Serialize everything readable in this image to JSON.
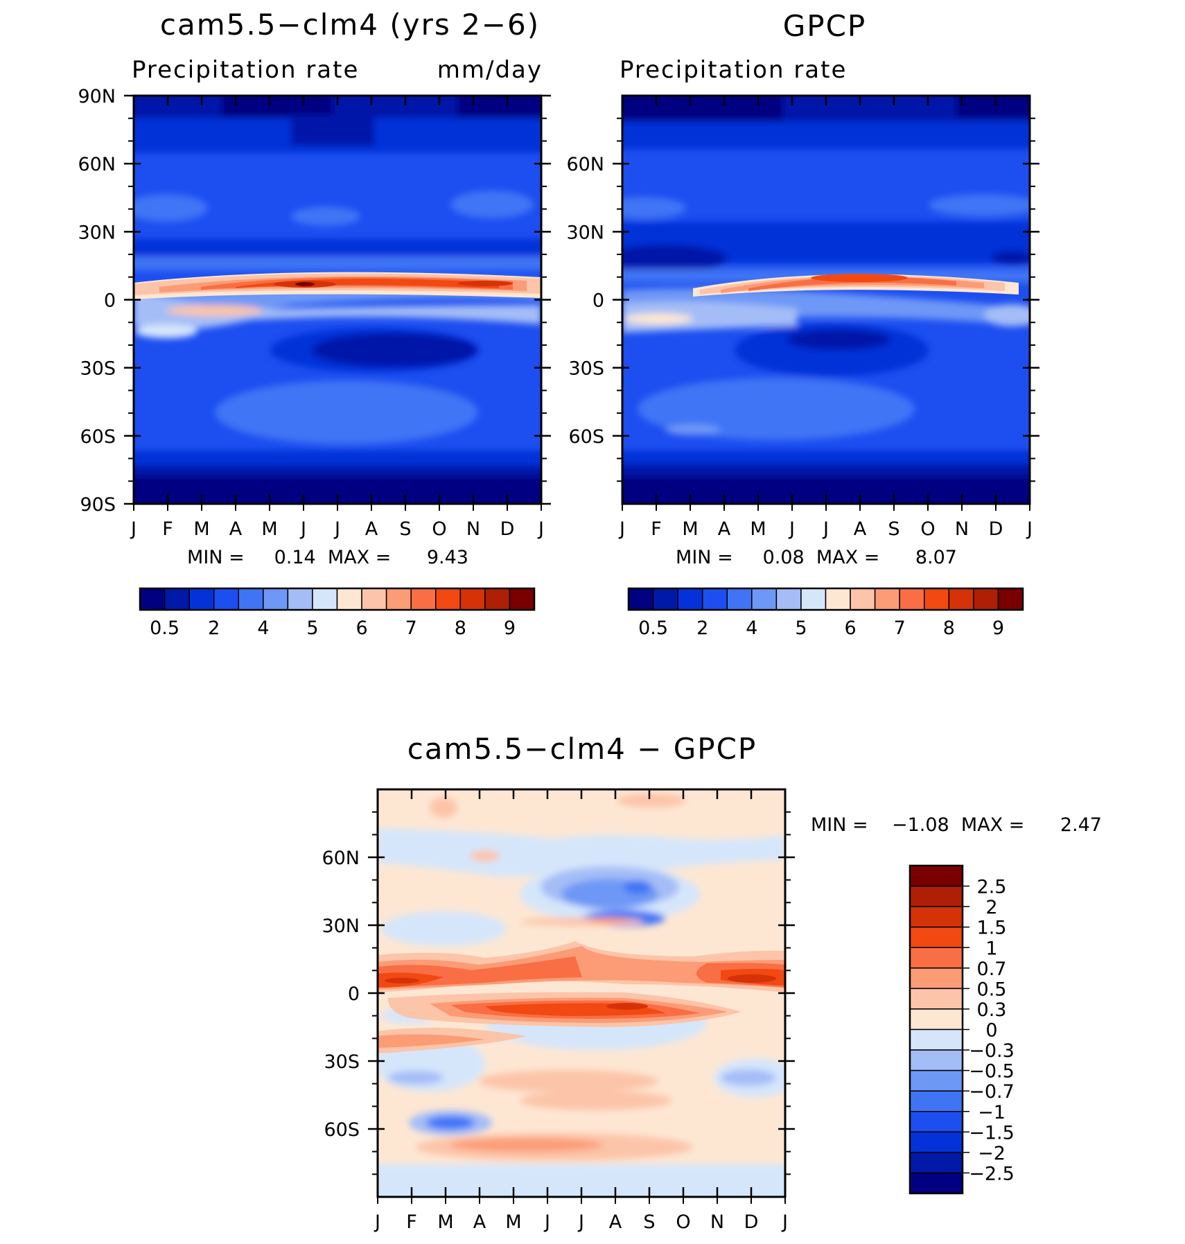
{
  "colors": {
    "sequential": [
      "#000080",
      "#0019a8",
      "#0532d8",
      "#1c4ef0",
      "#3f75f5",
      "#6e98f6",
      "#a4bdf7",
      "#d5e6fb",
      "#fde7d3",
      "#fcc4a8",
      "#fb9c77",
      "#f96e44",
      "#f24812",
      "#d63208",
      "#ae1f06",
      "#7a0000"
    ],
    "diverging": [
      "#000080",
      "#0019a8",
      "#0532d8",
      "#1c4ef0",
      "#3f75f5",
      "#6e98f6",
      "#a4bdf7",
      "#d5e6fb",
      "#fde7d3",
      "#fcc4a8",
      "#fb9c77",
      "#f96e44",
      "#f24812",
      "#d63208",
      "#ae1f06",
      "#7a0000"
    ]
  },
  "panel_model": {
    "title": "cam5.5−clm4 (yrs 2−6)",
    "left_string": "Precipitation rate",
    "right_string": "mm/day",
    "min_max": "MIN =     0.14  MAX =      9.43"
  },
  "panel_obs": {
    "title": "GPCP",
    "left_string": "Precipitation rate",
    "right_string": "",
    "min_max": "MIN =     0.08  MAX =      8.07"
  },
  "panel_diff": {
    "title": "cam5.5−clm4 − GPCP",
    "min_max": "MIN =    −1.08  MAX =      2.47"
  },
  "chart_data": [
    {
      "type": "heatmap",
      "title": "cam5.5−clm4 (yrs 2−6)",
      "subtitle_left": "Precipitation rate",
      "units": "mm/day",
      "x_ticks": [
        "J",
        "F",
        "M",
        "A",
        "M",
        "J",
        "J",
        "A",
        "S",
        "O",
        "N",
        "D",
        "J"
      ],
      "y_ticks": [
        "90N",
        "60N",
        "30N",
        "0",
        "30S",
        "60S",
        "90S"
      ],
      "ylim": [
        -90,
        90
      ],
      "contour_levels": [
        "0.5",
        "2",
        "4",
        "5",
        "6",
        "7",
        "8",
        "9"
      ],
      "min": 0.14,
      "max": 9.43,
      "colorbar": "horizontal"
    },
    {
      "type": "heatmap",
      "title": "GPCP",
      "subtitle_left": "Precipitation rate",
      "x_ticks": [
        "J",
        "F",
        "M",
        "A",
        "M",
        "J",
        "J",
        "A",
        "S",
        "O",
        "N",
        "D",
        "J"
      ],
      "y_ticks": [
        "60N",
        "30N",
        "0",
        "30S",
        "60S"
      ],
      "ylim": [
        -90,
        90
      ],
      "contour_levels": [
        "0.5",
        "2",
        "4",
        "5",
        "6",
        "7",
        "8",
        "9"
      ],
      "min": 0.08,
      "max": 8.07,
      "colorbar": "horizontal"
    },
    {
      "type": "heatmap",
      "title": "cam5.5−clm4 − GPCP",
      "x_ticks": [
        "J",
        "F",
        "M",
        "A",
        "M",
        "J",
        "J",
        "A",
        "S",
        "O",
        "N",
        "D",
        "J"
      ],
      "y_ticks": [
        "60N",
        "30N",
        "0",
        "30S",
        "60S"
      ],
      "ylim": [
        -90,
        90
      ],
      "contour_levels": [
        "2.5",
        "2",
        "1.5",
        "1",
        "0.7",
        "0.5",
        "0.3",
        "0",
        "−0.3",
        "−0.5",
        "−0.7",
        "−1",
        "−1.5",
        "−2",
        "−2.5"
      ],
      "min": -1.08,
      "max": 2.47,
      "colorbar": "vertical"
    }
  ]
}
